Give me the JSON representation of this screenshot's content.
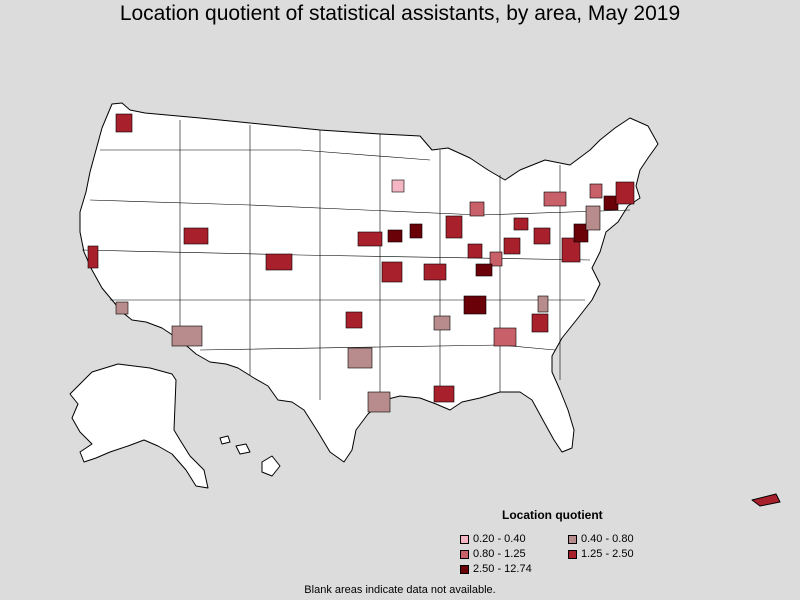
{
  "title": "Location quotient of statistical assistants, by area, May 2019",
  "legend": {
    "title": "Location quotient",
    "items": [
      {
        "label": "0.20 - 0.40",
        "color": "#f4b6c2"
      },
      {
        "label": "0.40 - 0.80",
        "color": "#b88c8c"
      },
      {
        "label": "0.80 - 1.25",
        "color": "#c8606a"
      },
      {
        "label": "1.25 - 2.50",
        "color": "#a8202c"
      },
      {
        "label": "2.50 - 12.74",
        "color": "#6a0008"
      }
    ]
  },
  "footnote": "Blank areas indicate data not available.",
  "colors": {
    "background": "#dcdcdc",
    "land": "#ffffff",
    "border": "#000000"
  }
}
